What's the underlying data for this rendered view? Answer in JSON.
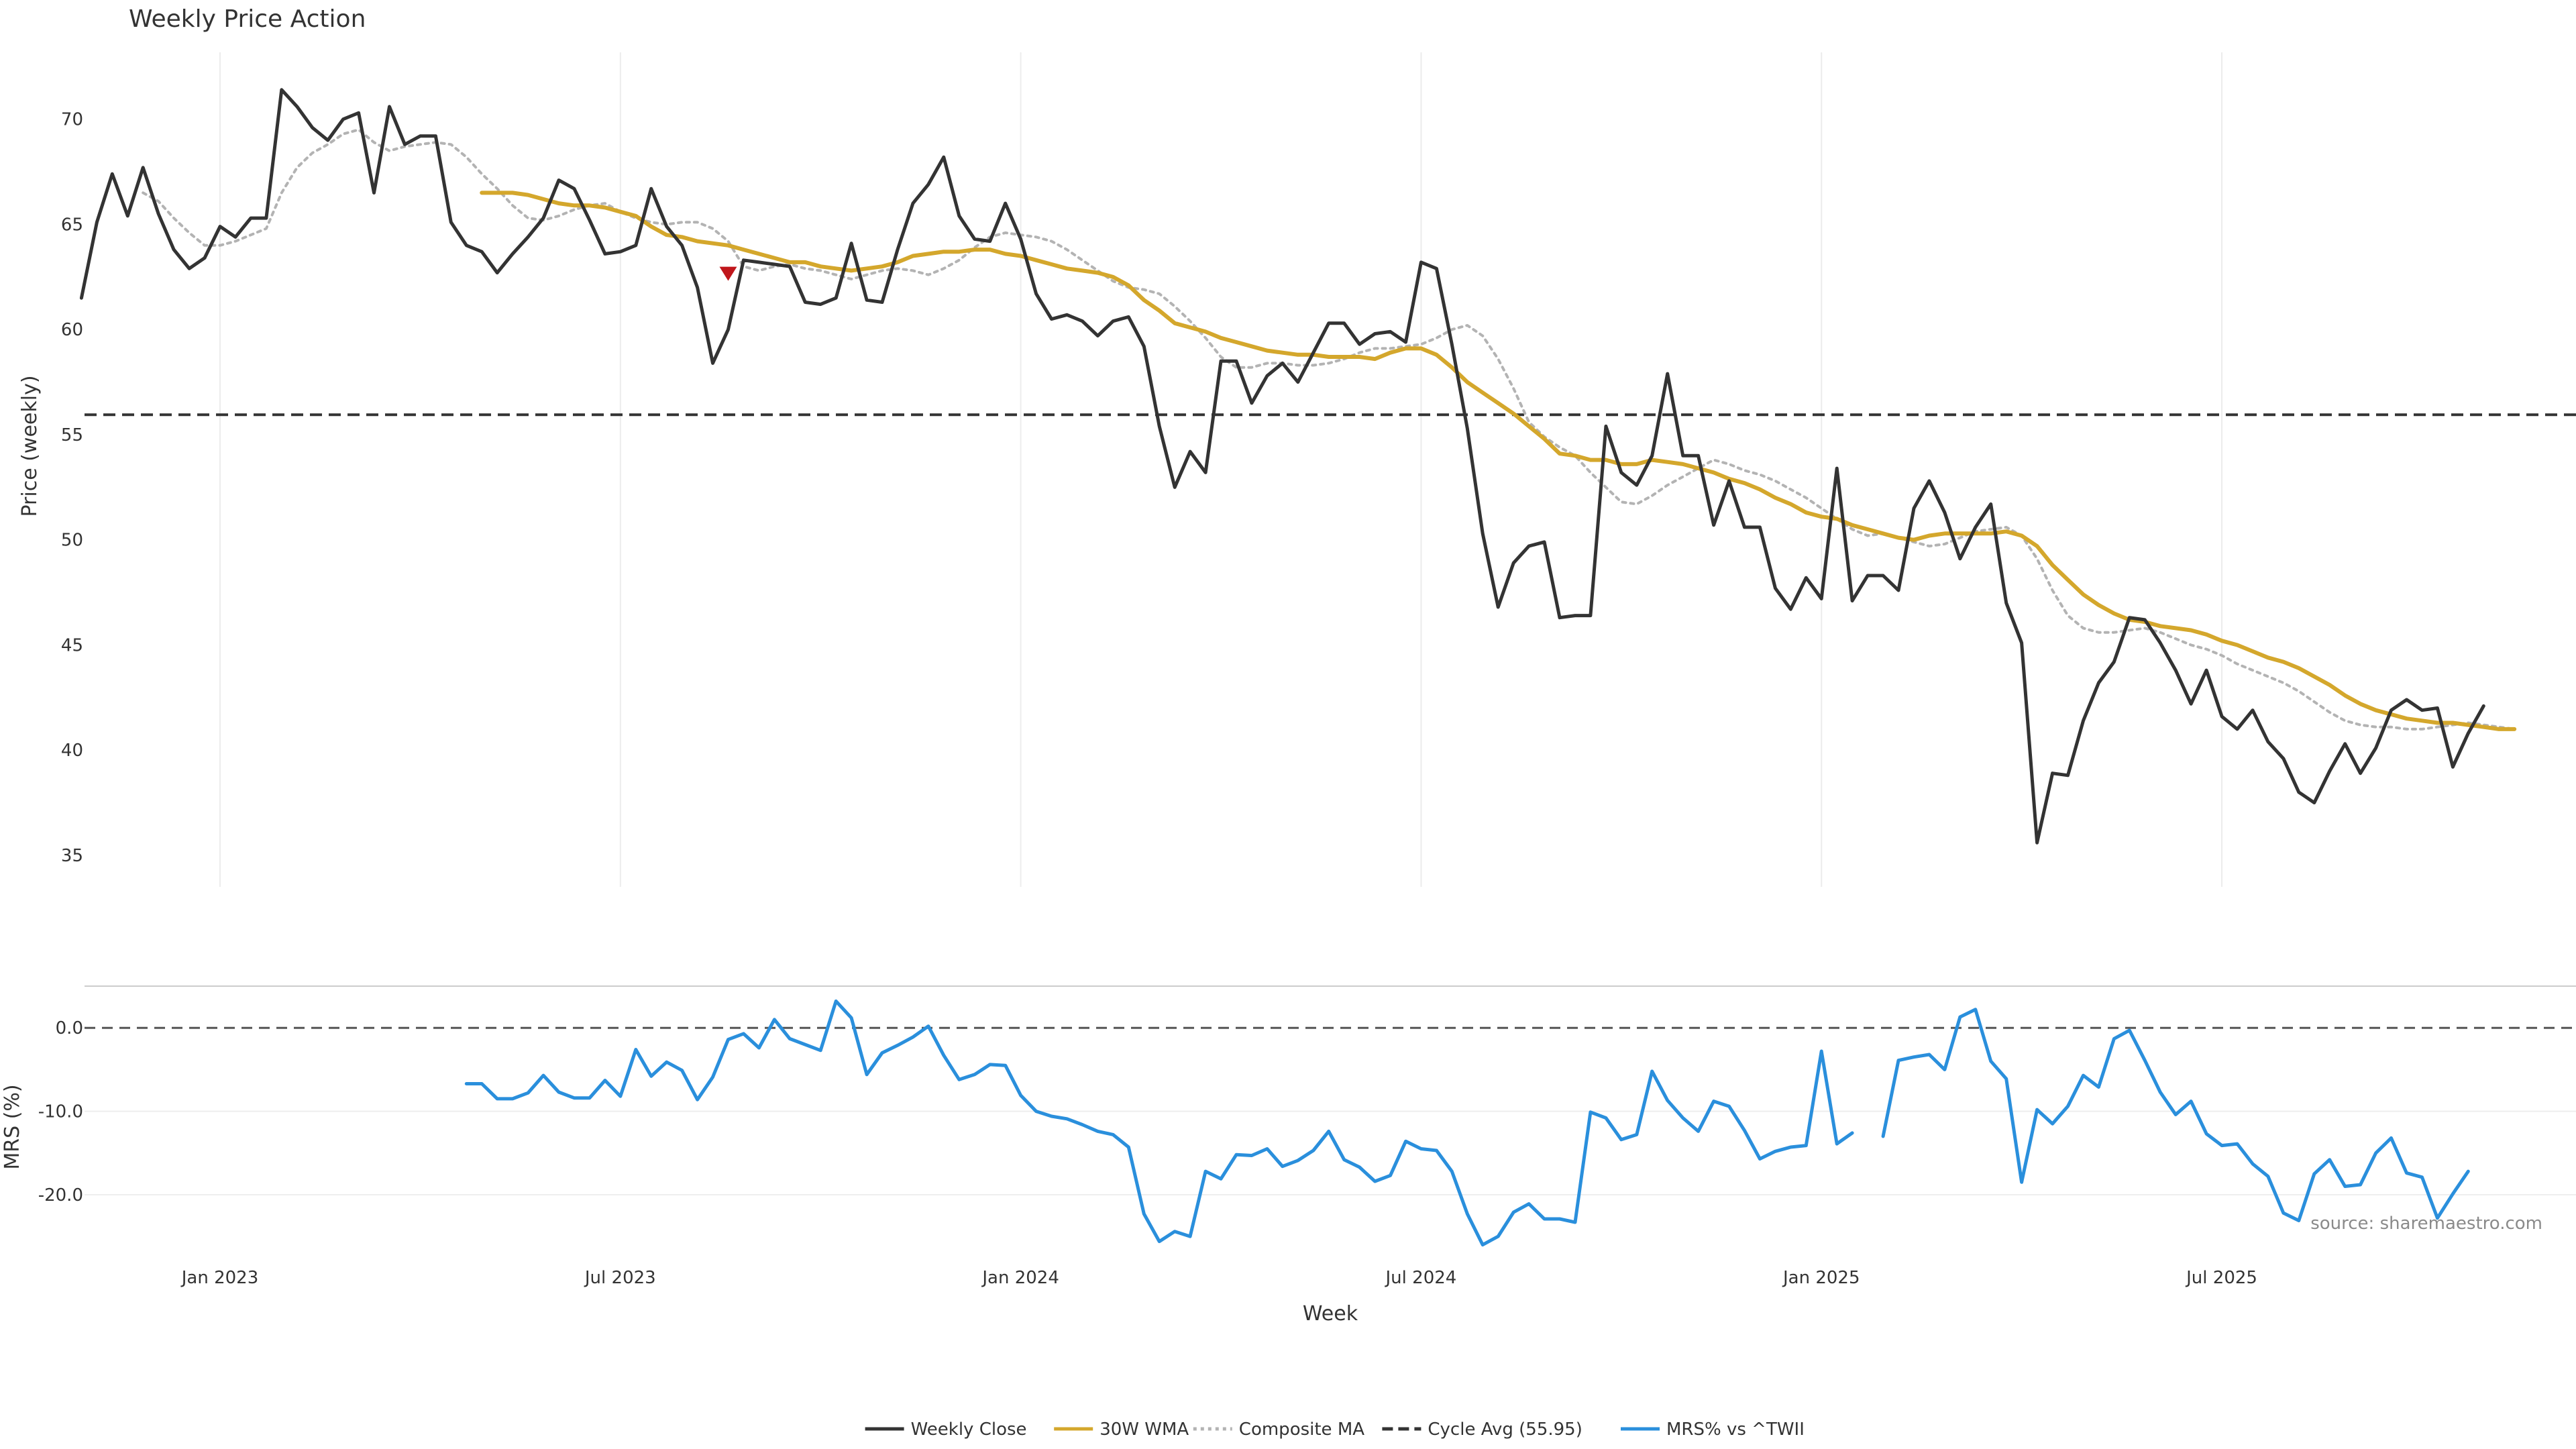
{
  "chart_data": {
    "type": "line",
    "title": "Weekly Price Action",
    "xlabel": "Week",
    "source": "source: sharemaestro.com",
    "x_ticks": [
      "Jan 2023",
      "Jul 2023",
      "Jan 2024",
      "Jul 2024",
      "Jan 2025",
      "Jul 2025"
    ],
    "x_tick_weeks": [
      5,
      31,
      57,
      83,
      109,
      135
    ],
    "x_range_weeks": [
      -3.8,
      158
    ],
    "price_panel": {
      "ylabel": "Price (weekly)",
      "ylim": [
        33.5,
        73.5
      ],
      "y_ticks": [
        35,
        40,
        45,
        50,
        55,
        60,
        65,
        70
      ],
      "grid": "vertical",
      "cycle_avg": 55.95,
      "sell_signal": {
        "week": 38,
        "value": 62.7
      },
      "series": [
        {
          "name": "Weekly Close",
          "color": "#333333",
          "style": "solid",
          "start_week": -4,
          "values": [
            61.5,
            65.1,
            67.4,
            65.4,
            67.7,
            65.5,
            63.8,
            62.9,
            63.4,
            64.9,
            64.4,
            65.3,
            65.3,
            71.4,
            70.6,
            69.6,
            69.0,
            70.0,
            70.3,
            66.5,
            70.6,
            68.8,
            69.2,
            69.2,
            65.1,
            64.0,
            63.7,
            62.7,
            63.6,
            64.4,
            65.3,
            67.1,
            66.7,
            65.2,
            63.6,
            63.7,
            64.0,
            66.7,
            64.9,
            64.0,
            62.0,
            58.4,
            60.0,
            63.3,
            63.2,
            63.1,
            63.0,
            61.3,
            61.2,
            61.5,
            64.1,
            61.4,
            61.3,
            63.8,
            66.0,
            66.9,
            68.2,
            65.4,
            64.3,
            64.2,
            66.0,
            64.3,
            61.7,
            60.5,
            60.7,
            60.4,
            59.7,
            60.4,
            60.6,
            59.2,
            55.4,
            52.5,
            54.2,
            53.2,
            58.5,
            58.5,
            56.5,
            57.8,
            58.4,
            57.5,
            58.9,
            60.3,
            60.3,
            59.3,
            59.8,
            59.9,
            59.4,
            63.2,
            62.9,
            59.3,
            55.3,
            50.3,
            46.8,
            48.9,
            49.7,
            49.9,
            46.3,
            46.4,
            46.4,
            55.4,
            53.2,
            52.6,
            54.0,
            57.9,
            54.0,
            54.0,
            50.7,
            52.8,
            50.6,
            50.6,
            47.7,
            46.7,
            48.2,
            47.2,
            53.4,
            47.1,
            48.3,
            48.3,
            47.6,
            51.5,
            52.8,
            51.3,
            49.1,
            50.6,
            51.7,
            47.0,
            45.1,
            35.6,
            38.9,
            38.8,
            41.4,
            43.2,
            44.2,
            46.3,
            46.2,
            45.1,
            43.8,
            42.2,
            43.8,
            41.6,
            41.0,
            41.9,
            40.4,
            39.6,
            38.0,
            37.5,
            39.0,
            40.3,
            38.9,
            40.1,
            41.9,
            42.4,
            41.9,
            42.0,
            39.2,
            40.8,
            42.1
          ]
        },
        {
          "name": "30W WMA",
          "color": "#d4a72c",
          "style": "solid",
          "start_week": 22,
          "values": [
            66.5,
            66.5,
            66.5,
            66.4,
            66.2,
            66.0,
            65.9,
            65.9,
            65.8,
            65.6,
            65.4,
            64.9,
            64.5,
            64.4,
            64.2,
            64.1,
            64.0,
            63.8,
            63.6,
            63.4,
            63.2,
            63.2,
            63.0,
            62.9,
            62.8,
            62.9,
            63.0,
            63.2,
            63.5,
            63.6,
            63.7,
            63.7,
            63.8,
            63.8,
            63.6,
            63.5,
            63.3,
            63.1,
            62.9,
            62.8,
            62.7,
            62.5,
            62.1,
            61.4,
            60.9,
            60.3,
            60.1,
            59.9,
            59.6,
            59.4,
            59.2,
            59.0,
            58.9,
            58.8,
            58.8,
            58.7,
            58.7,
            58.7,
            58.6,
            58.9,
            59.1,
            59.1,
            58.8,
            58.2,
            57.5,
            57.0,
            56.5,
            56.0,
            55.4,
            54.8,
            54.1,
            54.0,
            53.8,
            53.8,
            53.6,
            53.6,
            53.8,
            53.7,
            53.6,
            53.4,
            53.2,
            52.9,
            52.7,
            52.4,
            52.0,
            51.7,
            51.3,
            51.1,
            51.0,
            50.7,
            50.5,
            50.3,
            50.1,
            50.0,
            50.2,
            50.3,
            50.3,
            50.3,
            50.3,
            50.4,
            50.2,
            49.7,
            48.8,
            48.1,
            47.4,
            46.9,
            46.5,
            46.2,
            46.1,
            45.9,
            45.8,
            45.7,
            45.5,
            45.2,
            45.0,
            44.7,
            44.4,
            44.2,
            43.9,
            43.5,
            43.1,
            42.6,
            42.2,
            41.9,
            41.7,
            41.5,
            41.4,
            41.3,
            41.3,
            41.2,
            41.1,
            41.0,
            41.0
          ]
        },
        {
          "name": "Composite MA",
          "color": "#b3b3b3",
          "style": "dotted",
          "start_week": 0,
          "values": [
            66.5,
            66.1,
            65.3,
            64.6,
            64.0,
            64.0,
            64.2,
            64.5,
            64.8,
            66.5,
            67.7,
            68.4,
            68.8,
            69.3,
            69.5,
            68.9,
            68.5,
            68.7,
            68.8,
            68.9,
            68.8,
            68.2,
            67.4,
            66.7,
            65.9,
            65.3,
            65.2,
            65.4,
            65.7,
            65.9,
            66.0,
            65.6,
            65.3,
            65.1,
            65.0,
            65.1,
            65.1,
            64.8,
            64.2,
            63.0,
            62.8,
            63.0,
            63.1,
            62.9,
            62.8,
            62.6,
            62.4,
            62.6,
            62.8,
            62.9,
            62.8,
            62.6,
            62.9,
            63.3,
            63.9,
            64.4,
            64.6,
            64.5,
            64.4,
            64.2,
            63.8,
            63.3,
            62.8,
            62.3,
            62.0,
            61.9,
            61.7,
            61.1,
            60.4,
            59.6,
            58.7,
            58.2,
            58.2,
            58.4,
            58.4,
            58.3,
            58.3,
            58.4,
            58.6,
            58.9,
            59.1,
            59.1,
            59.2,
            59.3,
            59.6,
            60.0,
            60.2,
            59.7,
            58.6,
            57.2,
            55.6,
            54.9,
            54.4,
            54.0,
            53.2,
            52.5,
            51.8,
            51.7,
            52.1,
            52.6,
            53.0,
            53.4,
            53.8,
            53.6,
            53.3,
            53.1,
            52.8,
            52.4,
            52.0,
            51.5,
            51.0,
            50.5,
            50.2,
            50.3,
            50.1,
            49.9,
            49.7,
            49.8,
            50.1,
            50.4,
            50.5,
            50.6,
            50.2,
            49.1,
            47.6,
            46.4,
            45.8,
            45.6,
            45.6,
            45.7,
            45.8,
            45.6,
            45.3,
            45.0,
            44.8,
            44.5,
            44.1,
            43.8,
            43.5,
            43.2,
            42.8,
            42.3,
            41.8,
            41.4,
            41.2,
            41.1,
            41.1,
            41.0,
            41.0,
            41.1,
            41.2,
            41.3,
            41.2,
            41.1,
            41.0
          ]
        },
        {
          "name": "Cycle Avg (55.95)",
          "color": "#333333",
          "style": "dashed"
        }
      ]
    },
    "mrs_panel": {
      "ylabel": "MRS (%)",
      "ylim": [
        -27,
        5
      ],
      "y_ticks": [
        0,
        -10,
        -20
      ],
      "y_tick_labels": [
        "0.0",
        "-10.0",
        "-20.0"
      ],
      "zero_line": 0,
      "series": [
        {
          "name": "MRS% vs ^TWII",
          "color": "#2a8fdc",
          "style": "solid",
          "start_week": 21,
          "values": [
            -6.7,
            -6.7,
            -8.5,
            -8.5,
            -7.8,
            -5.7,
            -7.7,
            -8.4,
            -8.4,
            -6.3,
            -8.2,
            -2.6,
            -5.8,
            -4.1,
            -5.1,
            -8.6,
            -5.9,
            -1.4,
            -0.7,
            -2.4,
            1.0,
            -1.3,
            -2.0,
            -2.7,
            3.2,
            1.2,
            -5.6,
            -3.0,
            -2.1,
            -1.1,
            0.2,
            -3.3,
            -6.2,
            -5.6,
            -4.4,
            -4.5,
            -8.1,
            -10.0,
            -10.6,
            -10.9,
            -11.6,
            -12.4,
            -12.8,
            -14.3,
            -22.3,
            -25.6,
            -24.4,
            -25.0,
            -17.2,
            -18.1,
            -15.2,
            -15.3,
            -14.5,
            -16.6,
            -15.9,
            -14.7,
            -12.4,
            -15.8,
            -16.7,
            -18.4,
            -17.7,
            -13.6,
            -14.5,
            -14.7,
            -17.2,
            -22.3,
            -26.0,
            -25.0,
            -22.1,
            -21.1,
            -22.9,
            -22.9,
            -23.3,
            -10.1,
            -10.8,
            -13.4,
            -12.8,
            -5.2,
            -8.7,
            -10.8,
            -12.4,
            -8.8,
            -9.4,
            -12.3,
            -15.7,
            -14.8,
            -14.3,
            -14.1,
            -2.8,
            -13.9,
            -12.6,
            null,
            -13.0,
            -3.9,
            -3.5,
            -3.2,
            -5.0,
            1.3,
            2.2,
            -4.0,
            -6.1,
            -18.5,
            -9.8,
            -11.5,
            -9.4,
            -5.7,
            -7.1,
            -1.3,
            -0.3,
            -3.9,
            -7.7,
            -10.4,
            -8.8,
            -12.7,
            -14.1,
            -13.9,
            -16.3,
            -17.8,
            -22.2,
            -23.1,
            -17.5,
            -15.8,
            -19.0,
            -18.8,
            -15.0,
            -13.2,
            -17.4,
            -17.9,
            -22.8,
            -19.9,
            -17.2
          ]
        }
      ]
    },
    "legend": {
      "placement": "bottom-center",
      "items": [
        {
          "label": "Weekly Close",
          "color": "#333333",
          "style": "solid"
        },
        {
          "label": "30W WMA",
          "color": "#d4a72c",
          "style": "solid"
        },
        {
          "label": "Composite MA",
          "color": "#b3b3b3",
          "style": "dotted"
        },
        {
          "label": "Cycle Avg (55.95)",
          "color": "#333333",
          "style": "dashed"
        },
        {
          "label": "MRS% vs ^TWII",
          "color": "#2a8fdc",
          "style": "solid"
        }
      ]
    }
  }
}
